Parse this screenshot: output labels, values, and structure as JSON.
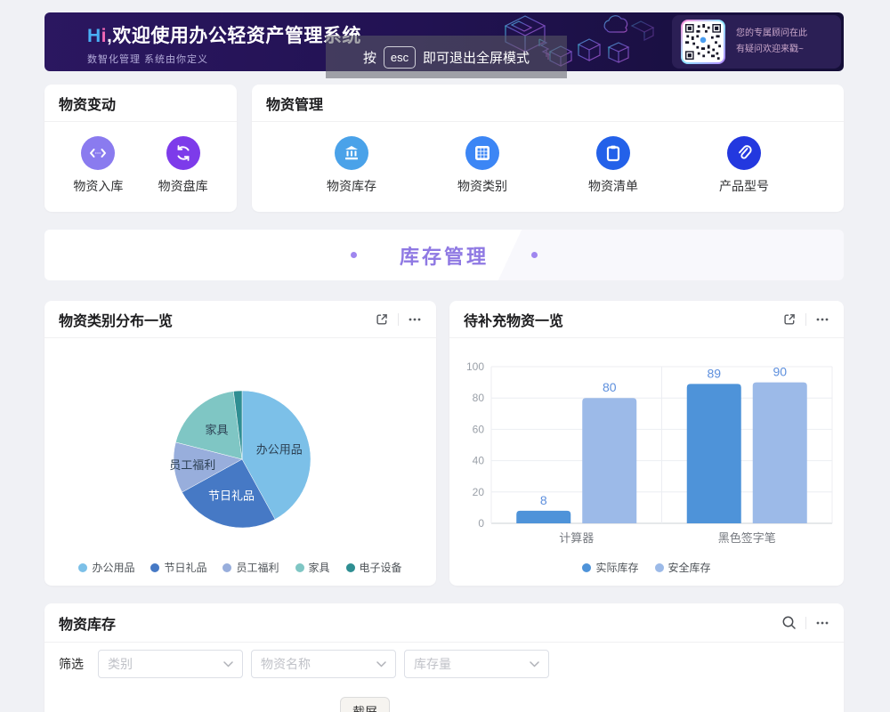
{
  "banner": {
    "hi_h": "H",
    "hi_i": "i",
    "comma": ",",
    "title": "欢迎使用办公轻资产管理系统",
    "subtitle": "数智化管理 系统由你定义",
    "qr_line1": "您的专属顾问在此",
    "qr_line2": "有疑问欢迎来戳~",
    "esc": {
      "prefix": "按",
      "key": "esc",
      "suffix": "即可退出全屏模式"
    }
  },
  "cards": {
    "material_change": {
      "title": "物资变动",
      "items": [
        {
          "label": "物资入库",
          "icon": "transfer-icon",
          "color": "#8a7bef"
        },
        {
          "label": "物资盘库",
          "icon": "sync-icon",
          "color": "#7d3bea"
        }
      ]
    },
    "material_mgmt": {
      "title": "物资管理",
      "items": [
        {
          "label": "物资库存",
          "icon": "bank-icon",
          "color": "#4aa2e9"
        },
        {
          "label": "物资类别",
          "icon": "grid-icon",
          "color": "#3c86f5"
        },
        {
          "label": "物资清单",
          "icon": "clipboard-icon",
          "color": "#2361e9"
        },
        {
          "label": "产品型号",
          "icon": "paperclip-icon",
          "color": "#2338df"
        }
      ]
    }
  },
  "section": {
    "title": "库存管理"
  },
  "chart_data": [
    {
      "type": "pie",
      "title": "物资类别分布一览",
      "legend_position": "bottom",
      "items": [
        {
          "name": "办公用品",
          "value": 42,
          "color": "#7cc0e8",
          "label_color": "#2b3f52"
        },
        {
          "name": "节日礼品",
          "value": 25,
          "color": "#4679c5",
          "label_color": "#ffffff"
        },
        {
          "name": "员工福利",
          "value": 12,
          "color": "#98aedc",
          "label_color": "#2b3f52"
        },
        {
          "name": "家具",
          "value": 19,
          "color": "#7fc6c4",
          "label_color": "#2b3f52"
        },
        {
          "name": "电子设备",
          "value": 2,
          "color": "#2e8e92",
          "label_color": "#2b3f52"
        }
      ]
    },
    {
      "type": "bar",
      "title": "待补充物资一览",
      "categories": [
        "计算器",
        "黑色签字笔"
      ],
      "series": [
        {
          "name": "实际库存",
          "color": "#4e93d9",
          "values": [
            8,
            89
          ]
        },
        {
          "name": "安全库存",
          "color": "#9cbae8",
          "values": [
            80,
            90
          ]
        }
      ],
      "ylim": [
        0,
        100
      ],
      "yticks": [
        0,
        20,
        40,
        60,
        80,
        100
      ],
      "value_label_color": "#5d8fdd",
      "grid": true,
      "legend_position": "bottom"
    }
  ],
  "inventory": {
    "title": "物资库存",
    "filter_label": "筛选",
    "filters": [
      {
        "placeholder": "类别"
      },
      {
        "placeholder": "物资名称"
      },
      {
        "placeholder": "库存量"
      }
    ],
    "screenshot_button": "截屏"
  }
}
